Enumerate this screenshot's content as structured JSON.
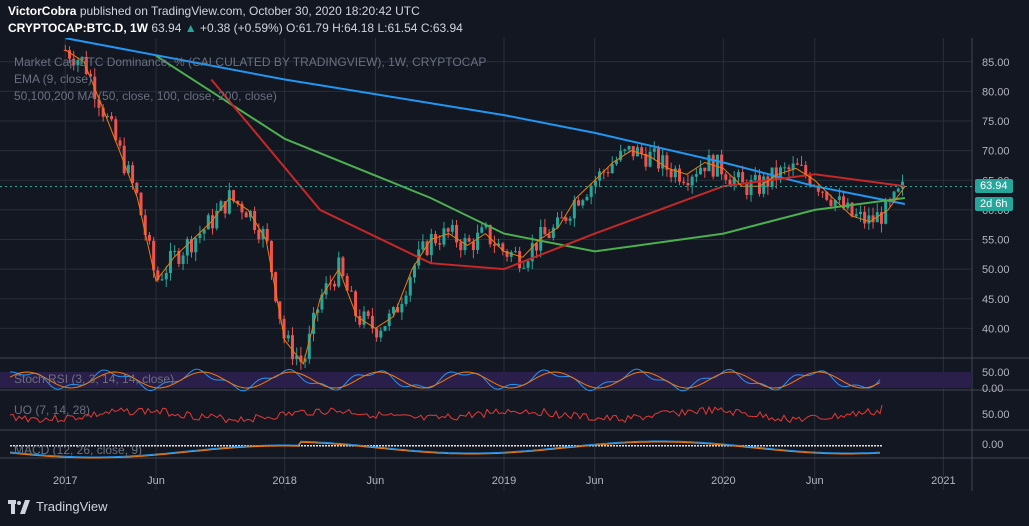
{
  "header": {
    "author": "VictorCobra",
    "published_text": "published on TradingView.com, October 30, 2020 18:20:42 UTC",
    "symbol": "CRYPTOCAP:BTC.D, 1W",
    "last": "63.94",
    "change": "+0.38 (+0.59%)",
    "ohlc": "O:61.79 H:64.18 L:61.54 C:63.94"
  },
  "legend": {
    "line1": "Market Cap BTC Dominance, % (CALCULATED BY TRADINGVIEW), 1W, CRYPTOCAP",
    "line2": "EMA (9, close)",
    "line3": "50,100,200 MA (50, close, 100, close, 200, close)",
    "stoch": "Stoch RSI (3, 3, 14, 14, close)",
    "uo": "UO (7, 14, 28)",
    "macd": "MACD (12, 26, close, 9)"
  },
  "price_label": "63.94",
  "time_label": "2d 6h",
  "footer_brand": "TradingView",
  "colors": {
    "background": "#131722",
    "up": "#26a69a",
    "down": "#ef5350",
    "ema": "#f57c00",
    "ma50": "#c62828",
    "ma100": "#4caf50",
    "ma200": "#2196f3"
  },
  "chart_data": {
    "type": "candlestick",
    "y_ticks": [
      "85.00",
      "80.00",
      "75.00",
      "70.00",
      "65.00",
      "60.00",
      "55.00",
      "50.00",
      "45.00",
      "40.00"
    ],
    "ylim": [
      35,
      88
    ],
    "x_ticks": [
      "2017",
      "Jun",
      "2018",
      "Jun",
      "2019",
      "Jun",
      "2020",
      "Jun",
      "2021"
    ],
    "stoch_ticks": [
      "50.00",
      "0.00"
    ],
    "uo_ticks": [
      "50.00"
    ],
    "macd_ticks": [
      "0.00"
    ],
    "close_series": [
      [
        "2017-01-01",
        87
      ],
      [
        "2017-02-01",
        85
      ],
      [
        "2017-03-01",
        78
      ],
      [
        "2017-04-01",
        70
      ],
      [
        "2017-05-01",
        62
      ],
      [
        "2017-06-01",
        48
      ],
      [
        "2017-07-01",
        52
      ],
      [
        "2017-08-01",
        55
      ],
      [
        "2017-09-01",
        58
      ],
      [
        "2017-10-01",
        62
      ],
      [
        "2017-11-01",
        60
      ],
      [
        "2017-12-01",
        55
      ],
      [
        "2018-01-01",
        38
      ],
      [
        "2018-02-01",
        34
      ],
      [
        "2018-03-01",
        45
      ],
      [
        "2018-04-01",
        50
      ],
      [
        "2018-05-01",
        42
      ],
      [
        "2018-06-01",
        40
      ],
      [
        "2018-07-01",
        42
      ],
      [
        "2018-08-01",
        50
      ],
      [
        "2018-09-01",
        55
      ],
      [
        "2018-10-01",
        56
      ],
      [
        "2018-11-01",
        54
      ],
      [
        "2018-12-01",
        56
      ],
      [
        "2019-01-01",
        53
      ],
      [
        "2019-02-01",
        52
      ],
      [
        "2019-03-01",
        55
      ],
      [
        "2019-04-01",
        57
      ],
      [
        "2019-05-01",
        62
      ],
      [
        "2019-06-01",
        65
      ],
      [
        "2019-07-01",
        68
      ],
      [
        "2019-08-01",
        70
      ],
      [
        "2019-09-01",
        69
      ],
      [
        "2019-10-01",
        67
      ],
      [
        "2019-11-01",
        66
      ],
      [
        "2019-12-01",
        68
      ],
      [
        "2020-01-01",
        67
      ],
      [
        "2020-02-01",
        64
      ],
      [
        "2020-03-01",
        64
      ],
      [
        "2020-04-01",
        66
      ],
      [
        "2020-05-01",
        67
      ],
      [
        "2020-06-01",
        65
      ],
      [
        "2020-07-01",
        62
      ],
      [
        "2020-08-01",
        59
      ],
      [
        "2020-09-01",
        58
      ],
      [
        "2020-10-01",
        60
      ],
      [
        "2020-10-29",
        63.94
      ]
    ],
    "ma200": [
      [
        "2017-01-01",
        89
      ],
      [
        "2018-01-01",
        82
      ],
      [
        "2019-01-01",
        76
      ],
      [
        "2019-06-01",
        73
      ],
      [
        "2020-01-01",
        68
      ],
      [
        "2020-06-01",
        64
      ],
      [
        "2020-10-29",
        61
      ]
    ],
    "ma100": [
      [
        "2017-06-01",
        86
      ],
      [
        "2018-01-01",
        72
      ],
      [
        "2018-09-01",
        62
      ],
      [
        "2019-01-01",
        56
      ],
      [
        "2019-06-01",
        53
      ],
      [
        "2020-01-01",
        56
      ],
      [
        "2020-06-01",
        60
      ],
      [
        "2020-10-29",
        62
      ]
    ],
    "ma50": [
      [
        "2017-09-01",
        82
      ],
      [
        "2018-03-01",
        60
      ],
      [
        "2018-09-01",
        51
      ],
      [
        "2019-01-01",
        50
      ],
      [
        "2019-06-01",
        56
      ],
      [
        "2020-01-01",
        64
      ],
      [
        "2020-06-01",
        66
      ],
      [
        "2020-10-29",
        64
      ]
    ]
  }
}
